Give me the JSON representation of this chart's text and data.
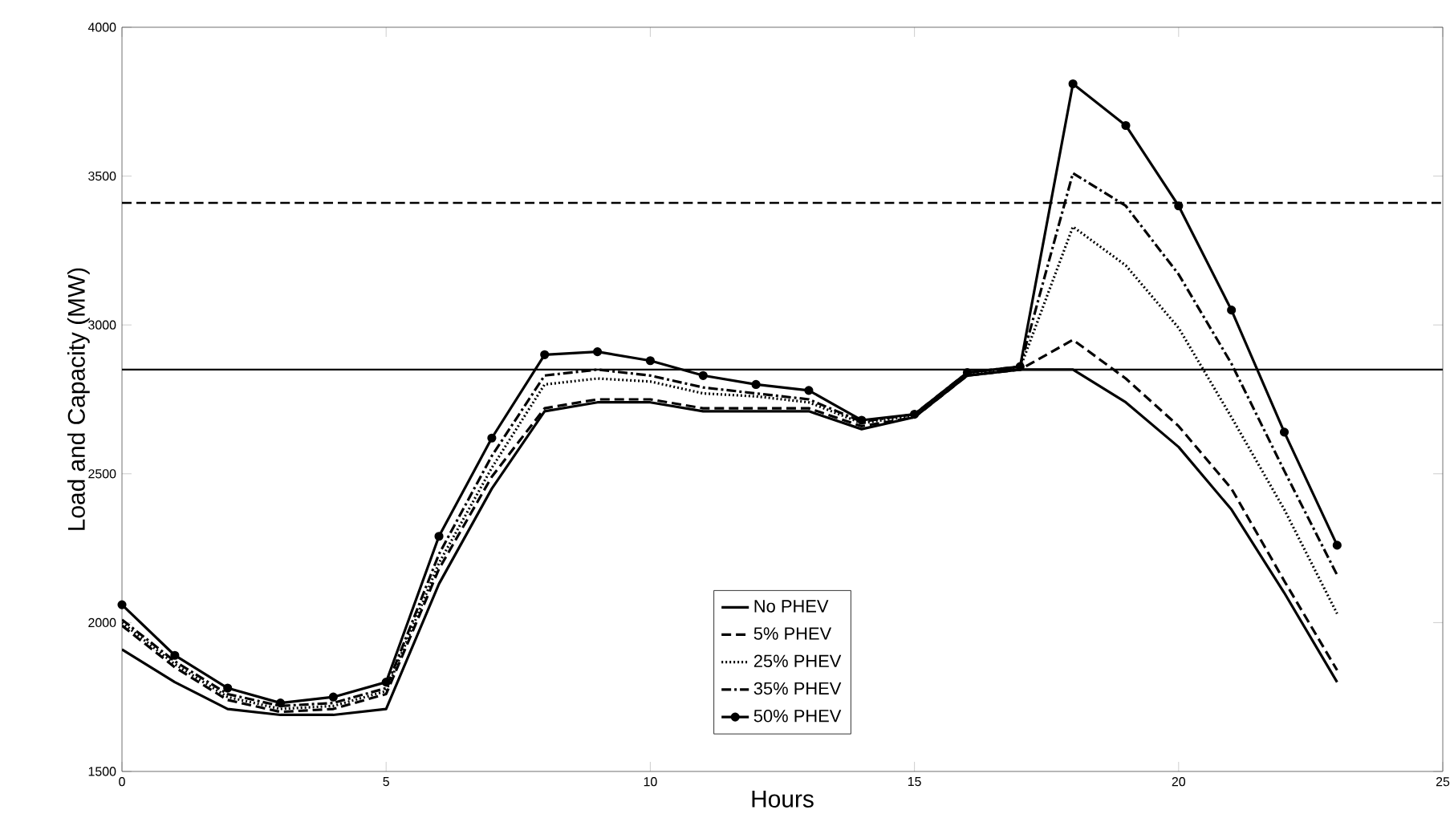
{
  "chart_data": {
    "type": "line",
    "xlabel": "Hours",
    "ylabel": "Load and Capacity (MW)",
    "x": [
      0,
      1,
      2,
      3,
      4,
      5,
      6,
      7,
      8,
      9,
      10,
      11,
      12,
      13,
      14,
      15,
      16,
      17,
      18,
      19,
      20,
      21,
      22,
      23
    ],
    "series": [
      {
        "name": "No PHEV",
        "color": "#000000",
        "line_style": "solid",
        "marker": "none",
        "values": [
          1910,
          1800,
          1710,
          1690,
          1690,
          1710,
          2130,
          2450,
          2710,
          2740,
          2740,
          2710,
          2710,
          2710,
          2650,
          2690,
          2830,
          2850,
          2850,
          2740,
          2590,
          2380,
          2100,
          1800
        ]
      },
      {
        "name": "5% PHEV",
        "color": "#000000",
        "line_style": "dashed",
        "marker": "none",
        "values": [
          1990,
          1850,
          1740,
          1700,
          1710,
          1760,
          2180,
          2490,
          2720,
          2750,
          2750,
          2720,
          2720,
          2720,
          2660,
          2690,
          2830,
          2850,
          2950,
          2820,
          2660,
          2450,
          2140,
          1840
        ]
      },
      {
        "name": "25% PHEV",
        "color": "#000000",
        "line_style": "dotted",
        "marker": "none",
        "values": [
          2000,
          1860,
          1750,
          1710,
          1720,
          1770,
          2200,
          2520,
          2800,
          2820,
          2810,
          2770,
          2760,
          2740,
          2670,
          2695,
          2835,
          2855,
          3330,
          3200,
          2990,
          2690,
          2380,
          2030
        ]
      },
      {
        "name": "35% PHEV",
        "color": "#000000",
        "line_style": "dashdot",
        "marker": "none",
        "values": [
          2010,
          1870,
          1760,
          1720,
          1730,
          1780,
          2230,
          2560,
          2830,
          2850,
          2830,
          2790,
          2770,
          2750,
          2675,
          2700,
          2840,
          2860,
          3510,
          3400,
          3170,
          2870,
          2510,
          2160
        ]
      },
      {
        "name": "50% PHEV",
        "color": "#000000",
        "line_style": "solid",
        "marker": "circle",
        "values": [
          2060,
          1890,
          1780,
          1730,
          1750,
          1800,
          2290,
          2620,
          2900,
          2910,
          2880,
          2830,
          2800,
          2780,
          2680,
          2700,
          2840,
          2860,
          3810,
          3670,
          3400,
          3050,
          2640,
          2260
        ]
      }
    ],
    "ref_lines": [
      {
        "axis": "y",
        "value": 3410,
        "line_style": "dashed",
        "color": "#000000"
      },
      {
        "axis": "y",
        "value": 2850,
        "line_style": "solid",
        "color": "#000000"
      }
    ],
    "xlim": [
      0,
      25
    ],
    "ylim": [
      1500,
      4000
    ],
    "xticks": [
      0,
      5,
      10,
      15,
      20,
      25
    ],
    "yticks": [
      1500,
      2000,
      2500,
      3000,
      3500,
      4000
    ],
    "grid": false,
    "legend": "bottom"
  }
}
